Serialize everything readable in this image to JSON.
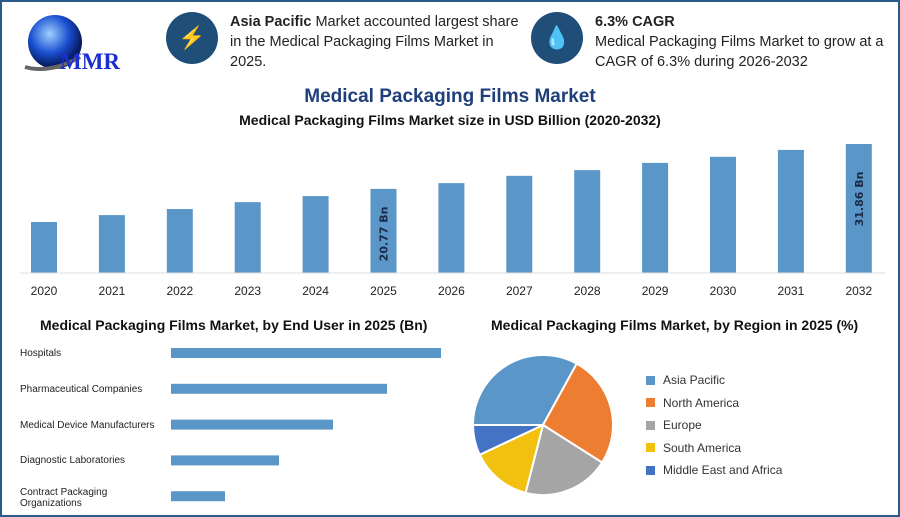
{
  "header": {
    "logo_text": "MMR",
    "info1": {
      "icon": "lightning-icon",
      "bold": "Asia Pacific",
      "text": " Market accounted largest share in the Medical Packaging Films Market in 2025."
    },
    "info2": {
      "icon": "growth-drop-icon",
      "bold": "6.3% CAGR",
      "text": "Medical Packaging Films Market to grow at a CAGR of 6.3% during 2026-2032"
    }
  },
  "colors": {
    "bar": "#5b96c8",
    "accent": "#1f4e79"
  },
  "chart_data": [
    {
      "type": "bar",
      "title": "Medical Packaging Films Market",
      "subtitle": "Medical Packaging Films Market size in USD Billion (2020-2032)",
      "categories": [
        "2020",
        "2021",
        "2022",
        "2023",
        "2024",
        "2025",
        "2026",
        "2027",
        "2028",
        "2029",
        "2030",
        "2031",
        "2032"
      ],
      "values": [
        12.6,
        14.3,
        15.8,
        17.5,
        19.0,
        20.77,
        22.2,
        24.0,
        25.4,
        27.2,
        28.7,
        30.4,
        31.86
      ],
      "data_labels": {
        "2025": "20.77 Bn",
        "2032": "31.86 Bn"
      },
      "grid": false
    },
    {
      "type": "bar",
      "orientation": "horizontal",
      "title": "Medical Packaging Films Market, by End User in 2025 (Bn)",
      "categories": [
        "Hospitals",
        "Pharmaceutical Companies",
        "Medical Device Manufacturers",
        "Diagnostic Laboratories",
        "Contract Packaging Organizations"
      ],
      "values": [
        5,
        4,
        3,
        2,
        1
      ]
    },
    {
      "type": "pie",
      "title": "Medical Packaging Films Market, by Region in 2025 (%)",
      "categories": [
        "Asia Pacific",
        "North America",
        "Europe",
        "South America",
        "Middle East and Africa"
      ],
      "values": [
        33,
        26,
        20,
        14,
        7
      ],
      "colors": [
        "#5b96c8",
        "#ed7d31",
        "#a5a5a5",
        "#f2c00f",
        "#4472c4"
      ],
      "legend": "right"
    }
  ]
}
